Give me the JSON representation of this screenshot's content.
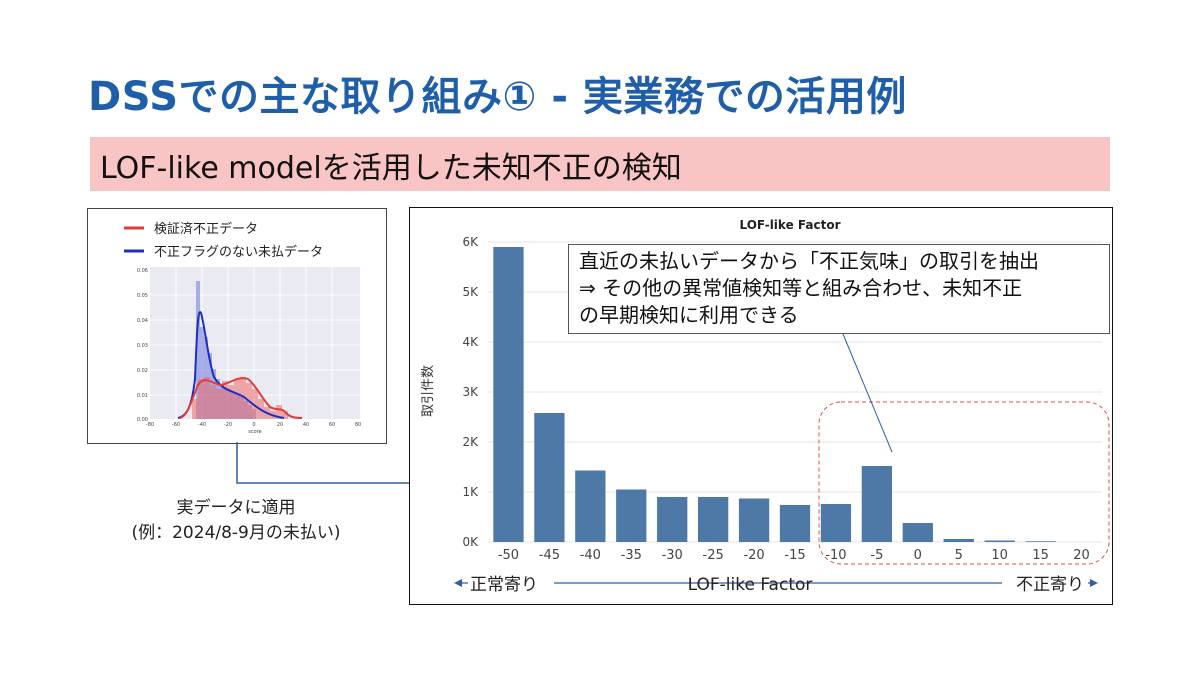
{
  "slide": {
    "title": "DSSでの主な取り組み① - 実業務での活用例",
    "subtitle": "LOF-like modelを活用した未知不正の検知"
  },
  "left_chart": {
    "legend": [
      {
        "label": "検証済不正データ",
        "color": "#e33b3b"
      },
      {
        "label": "不正フラグのない未払データ",
        "color": "#1d2fc2"
      }
    ],
    "ytick_labels": [
      "0.06",
      "0.05",
      "0.04",
      "0.03",
      "0.02",
      "0.01",
      "0.00"
    ],
    "xtick_labels": [
      "-80",
      "-60",
      "-40",
      "-20",
      "0",
      "20",
      "40",
      "60",
      "80"
    ],
    "xlabel": "score"
  },
  "caption": {
    "line1": "実データに適用",
    "line2": "(例：2024/8-9月の未払い)"
  },
  "callout": {
    "line1": "直近の未払いデータから「不正気味」の取引を抽出",
    "line2": "⇒ その他の異常値検知等と組み合わせ、未知不正",
    "line3": "の早期検知に利用できる"
  },
  "axis_annotation": {
    "left": "正常寄り",
    "center": "LOF-like Factor",
    "right": "不正寄り"
  },
  "chart_data": {
    "type": "bar",
    "title": "LOF-like Factor",
    "ylabel": "取引件数",
    "xlabel": "",
    "categories": [
      "-50",
      "-45",
      "-40",
      "-35",
      "-30",
      "-25",
      "-20",
      "-15",
      "-10",
      "-5",
      "0",
      "5",
      "10",
      "15",
      "20"
    ],
    "values": [
      5900,
      2580,
      1430,
      1050,
      900,
      900,
      870,
      740,
      760,
      1520,
      380,
      60,
      30,
      15,
      0
    ],
    "ylim": [
      0,
      6000
    ],
    "ytick_labels": [
      "0K",
      "1K",
      "2K",
      "3K",
      "4K",
      "5K",
      "6K"
    ],
    "ytick_values": [
      0,
      1000,
      2000,
      3000,
      4000,
      5000,
      6000
    ],
    "bar_color": "#4e79a7",
    "grid": true,
    "highlight_color": "#d9534f"
  }
}
